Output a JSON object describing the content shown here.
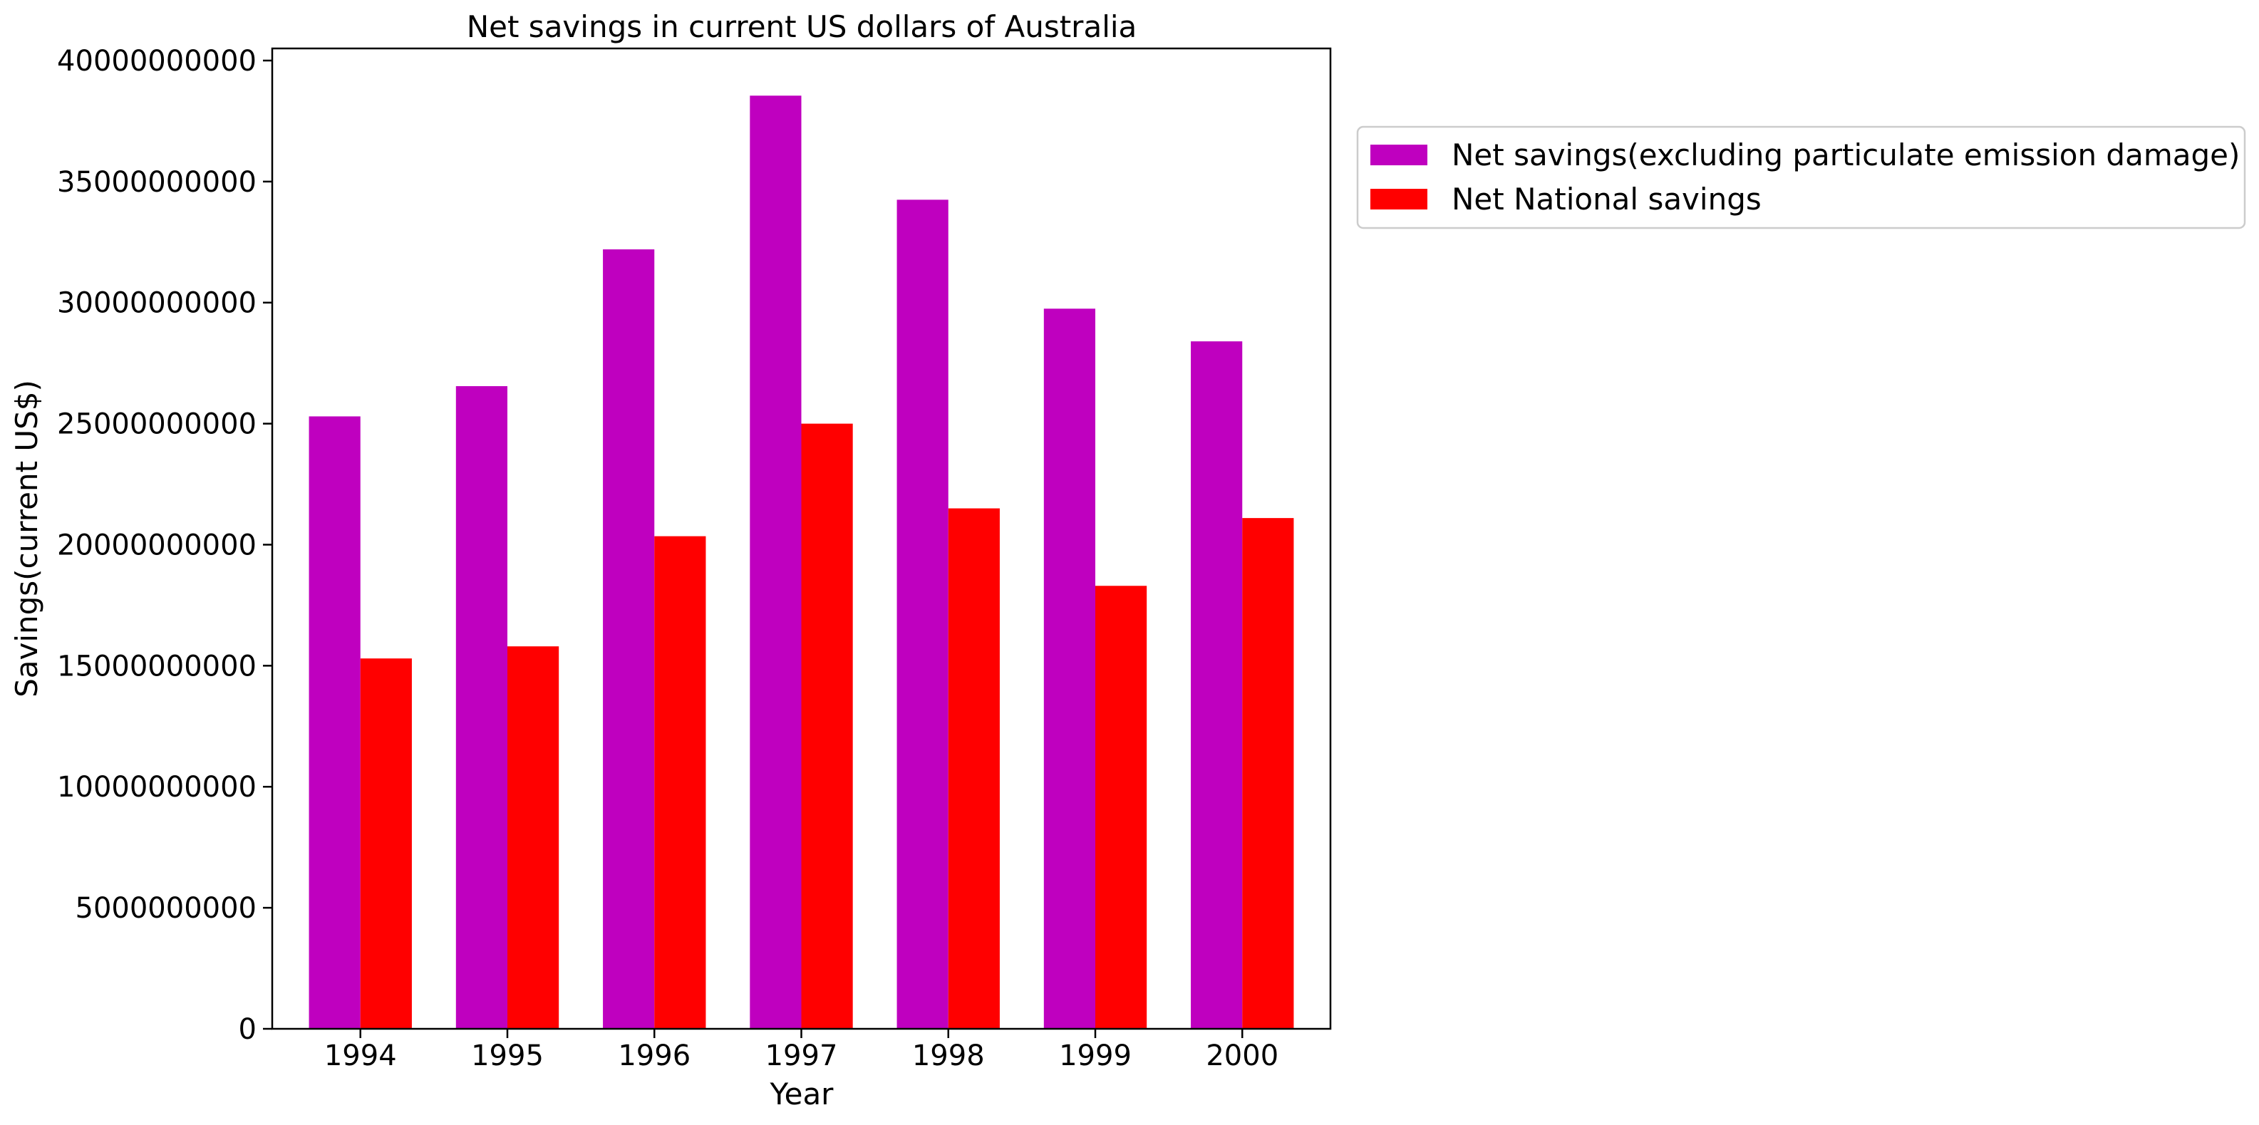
{
  "chart_data": {
    "type": "bar",
    "title": "Net savings in current US dollars of Australia",
    "xlabel": "Year",
    "ylabel": "Savings(current US$)",
    "categories": [
      "1994",
      "1995",
      "1996",
      "1997",
      "1998",
      "1999",
      "2000"
    ],
    "series": [
      {
        "name": "Net savings(excluding particulate emission damage)",
        "color": "#bf00bf",
        "values": [
          25300000000,
          26550000000,
          32200000000,
          38550000000,
          34250000000,
          29750000000,
          28400000000
        ]
      },
      {
        "name": "Net National savings",
        "color": "#ff0000",
        "values": [
          15300000000,
          15800000000,
          20350000000,
          25000000000,
          21500000000,
          18300000000,
          21100000000
        ]
      }
    ],
    "ylim": [
      0,
      40500000000
    ],
    "yticks": [
      "0",
      "5000000000",
      "10000000000",
      "15000000000",
      "20000000000",
      "25000000000",
      "30000000000",
      "35000000000",
      "40000000000"
    ],
    "grid": false,
    "legend_position": "outside-right-top"
  }
}
